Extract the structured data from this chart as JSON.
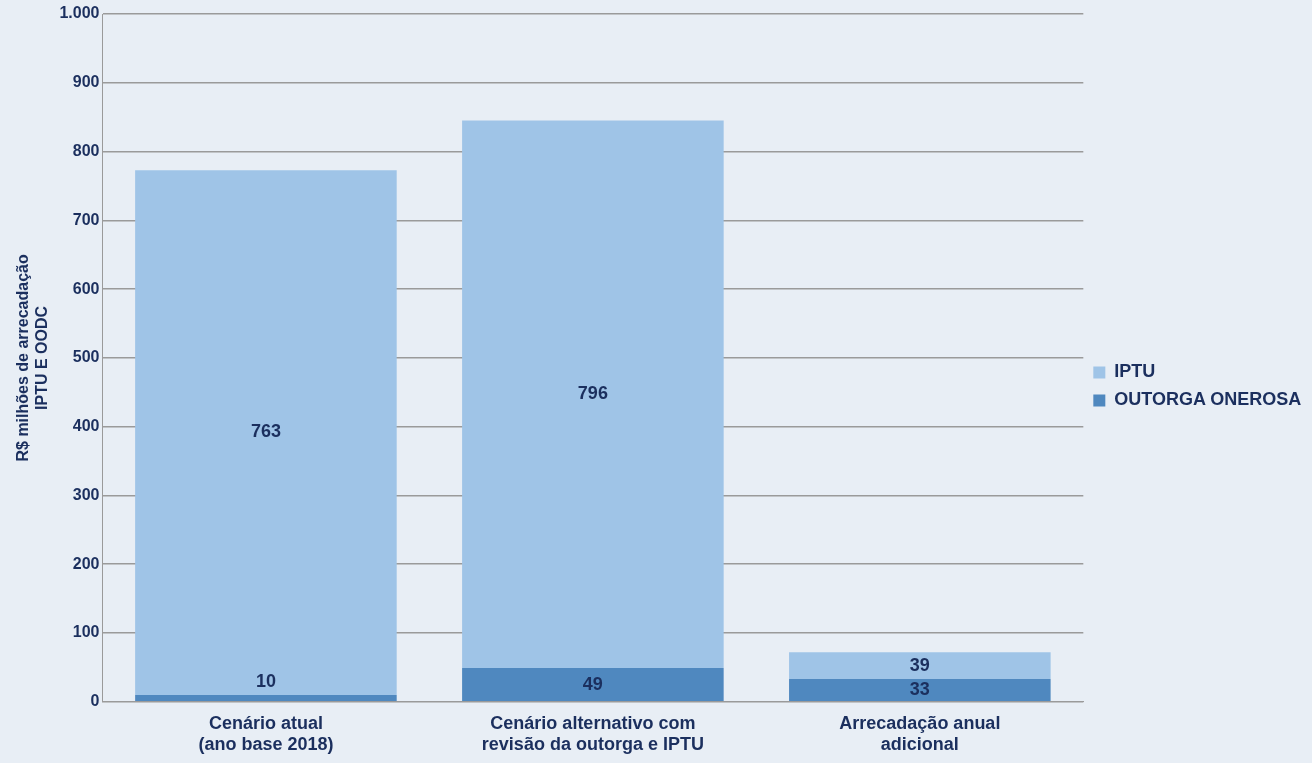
{
  "chart_data": {
    "type": "bar",
    "stacked": true,
    "ylabel": "R$ milhões de arrecadação\nIPTU E OODC",
    "categories": [
      "Cenário atual\n(ano base 2018)",
      "Cenário alternativo com\nrevisão da outorga e IPTU",
      "Arrecadação anual\nadicional"
    ],
    "series": [
      {
        "name": "OUTORGA ONEROSA",
        "color": "#4f88bf",
        "values": [
          10,
          49,
          33
        ]
      },
      {
        "name": "IPTU",
        "color": "#9fc4e7",
        "values": [
          763,
          796,
          39
        ]
      }
    ],
    "ylim": [
      0,
      1000
    ],
    "yticks": [
      0,
      100,
      200,
      300,
      400,
      500,
      600,
      700,
      800,
      900,
      {
        "value": 1000,
        "label": "1.000"
      }
    ],
    "grid": "y",
    "legend": "right",
    "data_labels": true
  }
}
